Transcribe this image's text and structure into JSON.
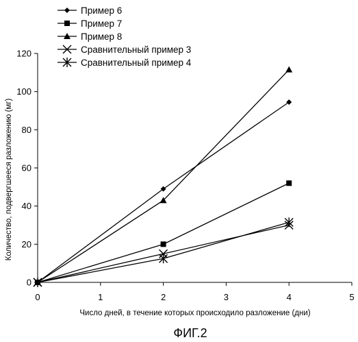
{
  "chart_data": {
    "type": "line",
    "title": "",
    "xlabel": "Число дней, в течение которых происходило разложение (дни)",
    "ylabel": "Количество, подвергшееся разложению (мг)",
    "xlim": [
      0,
      5
    ],
    "ylim": [
      0,
      120
    ],
    "xticks": [
      "0",
      "1",
      "2",
      "3",
      "4",
      "5"
    ],
    "yticks": [
      "0",
      "20",
      "40",
      "60",
      "80",
      "100",
      "120"
    ],
    "grid": false,
    "legend_position": "top-left",
    "series": [
      {
        "name": "Пример 6",
        "marker": "diamond",
        "x": [
          0,
          2,
          4
        ],
        "y": [
          0,
          49,
          94.5
        ]
      },
      {
        "name": "Пример 7",
        "marker": "square",
        "x": [
          0,
          2,
          4
        ],
        "y": [
          0,
          20,
          52
        ]
      },
      {
        "name": "Пример 8",
        "marker": "triangle",
        "x": [
          0,
          2,
          4
        ],
        "y": [
          0,
          43,
          111.5
        ]
      },
      {
        "name": "Сравнительный пример 3",
        "marker": "x",
        "x": [
          0,
          2,
          4
        ],
        "y": [
          0,
          15,
          30
        ]
      },
      {
        "name": "Сравнительный пример 4",
        "marker": "asterisk",
        "x": [
          0,
          2,
          4
        ],
        "y": [
          0,
          12.5,
          31.5
        ]
      }
    ]
  },
  "caption": "ФИГ.2",
  "colors": {
    "line": "#000000",
    "background": "#ffffff"
  }
}
